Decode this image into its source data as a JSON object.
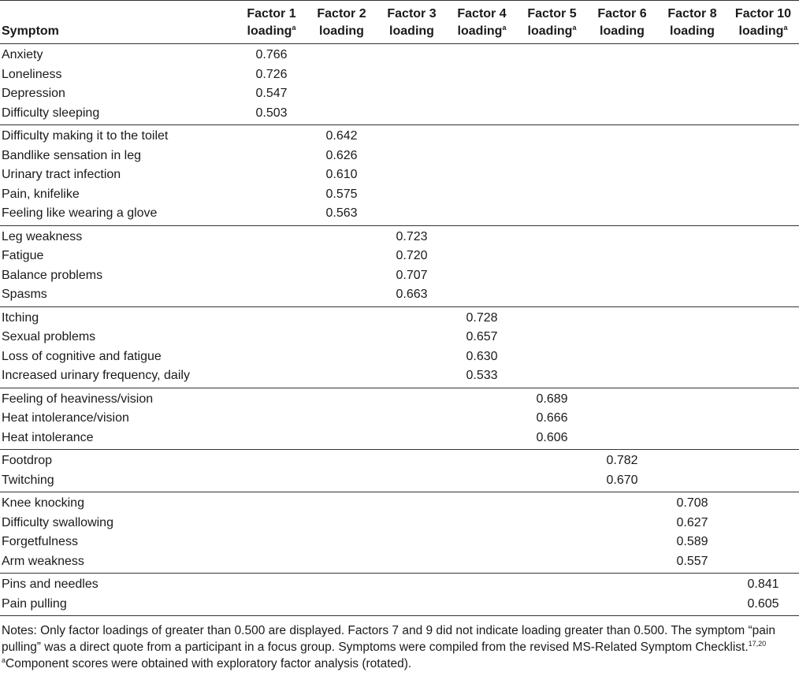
{
  "table": {
    "header": [
      {
        "bottom": "Symptom"
      },
      {
        "top": "Factor 1",
        "bottom": "loading",
        "mark": "a"
      },
      {
        "top": "Factor 2",
        "bottom": "loading"
      },
      {
        "top": "Factor 3",
        "bottom": "loading"
      },
      {
        "top": "Factor 4",
        "bottom": "loading",
        "mark": "a"
      },
      {
        "top": "Factor 5",
        "bottom": "loading",
        "mark": "a"
      },
      {
        "top": "Factor 6",
        "bottom": "loading"
      },
      {
        "top": "Factor 8",
        "bottom": "loading"
      },
      {
        "top": "Factor 10",
        "bottom": "loading",
        "mark": "a"
      }
    ],
    "groups": [
      [
        [
          "Anxiety",
          "0.766",
          null,
          null,
          null,
          null,
          null,
          null,
          null
        ],
        [
          "Loneliness",
          "0.726",
          null,
          null,
          null,
          null,
          null,
          null,
          null
        ],
        [
          "Depression",
          "0.547",
          null,
          null,
          null,
          null,
          null,
          null,
          null
        ],
        [
          "Difficulty sleeping",
          "0.503",
          null,
          null,
          null,
          null,
          null,
          null,
          null
        ]
      ],
      [
        [
          "Difficulty making it to the toilet",
          null,
          "0.642",
          null,
          null,
          null,
          null,
          null,
          null
        ],
        [
          "Bandlike sensation in leg",
          null,
          "0.626",
          null,
          null,
          null,
          null,
          null,
          null
        ],
        [
          "Urinary tract infection",
          null,
          "0.610",
          null,
          null,
          null,
          null,
          null,
          null
        ],
        [
          "Pain, knifelike",
          null,
          "0.575",
          null,
          null,
          null,
          null,
          null,
          null
        ],
        [
          "Feeling like wearing a glove",
          null,
          "0.563",
          null,
          null,
          null,
          null,
          null,
          null
        ]
      ],
      [
        [
          "Leg weakness",
          null,
          null,
          "0.723",
          null,
          null,
          null,
          null,
          null
        ],
        [
          "Fatigue",
          null,
          null,
          "0.720",
          null,
          null,
          null,
          null,
          null
        ],
        [
          "Balance problems",
          null,
          null,
          "0.707",
          null,
          null,
          null,
          null,
          null
        ],
        [
          "Spasms",
          null,
          null,
          "0.663",
          null,
          null,
          null,
          null,
          null
        ]
      ],
      [
        [
          "Itching",
          null,
          null,
          null,
          "0.728",
          null,
          null,
          null,
          null
        ],
        [
          "Sexual problems",
          null,
          null,
          null,
          "0.657",
          null,
          null,
          null,
          null
        ],
        [
          "Loss of cognitive and fatigue",
          null,
          null,
          null,
          "0.630",
          null,
          null,
          null,
          null
        ],
        [
          "Increased urinary frequency, daily",
          null,
          null,
          null,
          "0.533",
          null,
          null,
          null,
          null
        ]
      ],
      [
        [
          "Feeling of heaviness/vision",
          null,
          null,
          null,
          null,
          "0.689",
          null,
          null,
          null
        ],
        [
          "Heat intolerance/vision",
          null,
          null,
          null,
          null,
          "0.666",
          null,
          null,
          null
        ],
        [
          "Heat intolerance",
          null,
          null,
          null,
          null,
          "0.606",
          null,
          null,
          null
        ]
      ],
      [
        [
          "Footdrop",
          null,
          null,
          null,
          null,
          null,
          "0.782",
          null,
          null
        ],
        [
          "Twitching",
          null,
          null,
          null,
          null,
          null,
          "0.670",
          null,
          null
        ]
      ],
      [
        [
          "Knee knocking",
          null,
          null,
          null,
          null,
          null,
          null,
          "0.708",
          null
        ],
        [
          "Difficulty swallowing",
          null,
          null,
          null,
          null,
          null,
          null,
          "0.627",
          null
        ],
        [
          "Forgetfulness",
          null,
          null,
          null,
          null,
          null,
          null,
          "0.589",
          null
        ],
        [
          "Arm weakness",
          null,
          null,
          null,
          null,
          null,
          null,
          "0.557",
          null
        ]
      ],
      [
        [
          "Pins and needles",
          null,
          null,
          null,
          null,
          null,
          null,
          null,
          "0.841"
        ],
        [
          "Pain pulling",
          null,
          null,
          null,
          null,
          null,
          null,
          null,
          "0.605"
        ]
      ]
    ],
    "notes": {
      "text": "Notes: Only factor loadings of greater than 0.500 are displayed. Factors 7 and 9 did not indicate loading greater than 0.500. The symptom “pain pulling” was a direct quote from a participant in a focus group. Symptoms were compiled from the revised MS-Related Symptom Checklist.",
      "ref": "17,20"
    },
    "footnote": {
      "mark": "a",
      "text": "Component scores were obtained with exploratory factor analysis (rotated)."
    }
  }
}
